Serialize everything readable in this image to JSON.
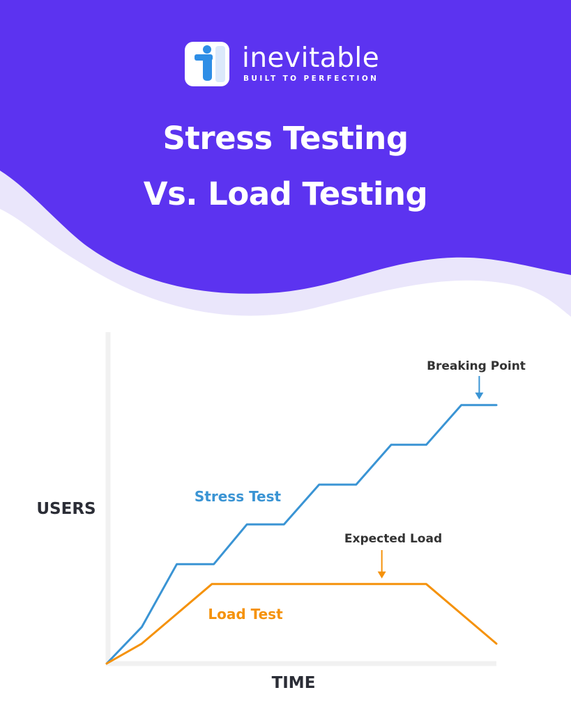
{
  "brand": {
    "name": "inevitable",
    "tagline": "BUILT TO PERFECTION",
    "logo_icon": "letter-i-logo-icon"
  },
  "header": {
    "title_line1": "Stress Testing",
    "title_line2": "Vs. Load Testing"
  },
  "colors": {
    "header_bg": "#5c33f0",
    "wave_light": "#eae6fb",
    "stress": "#3a94d4",
    "load": "#f5920b",
    "text_dark": "#2b2d36",
    "axis": "#f1f1f1",
    "logo_blue": "#2e8ee6"
  },
  "chart_data": {
    "type": "line",
    "xlabel": "TIME",
    "ylabel": "USERS",
    "xlim": [
      0,
      100
    ],
    "ylim": [
      0,
      100
    ],
    "series": [
      {
        "name": "Stress Test",
        "color": "#3a94d4",
        "points": [
          [
            0,
            0
          ],
          [
            9,
            11
          ],
          [
            18,
            30
          ],
          [
            27.5,
            30
          ],
          [
            36,
            42
          ],
          [
            45.5,
            42
          ],
          [
            54.5,
            54
          ],
          [
            64,
            54
          ],
          [
            73,
            66
          ],
          [
            82,
            66
          ],
          [
            91,
            78
          ],
          [
            100,
            78
          ]
        ]
      },
      {
        "name": "Load Test",
        "color": "#f5920b",
        "points": [
          [
            0,
            0
          ],
          [
            9,
            6
          ],
          [
            27,
            24
          ],
          [
            82,
            24
          ],
          [
            100,
            6
          ]
        ]
      }
    ],
    "annotations": [
      {
        "text": "Breaking Point",
        "target": [
          95.6,
          78
        ]
      },
      {
        "text": "Expected Load",
        "target": [
          70.6,
          24
        ]
      }
    ]
  }
}
